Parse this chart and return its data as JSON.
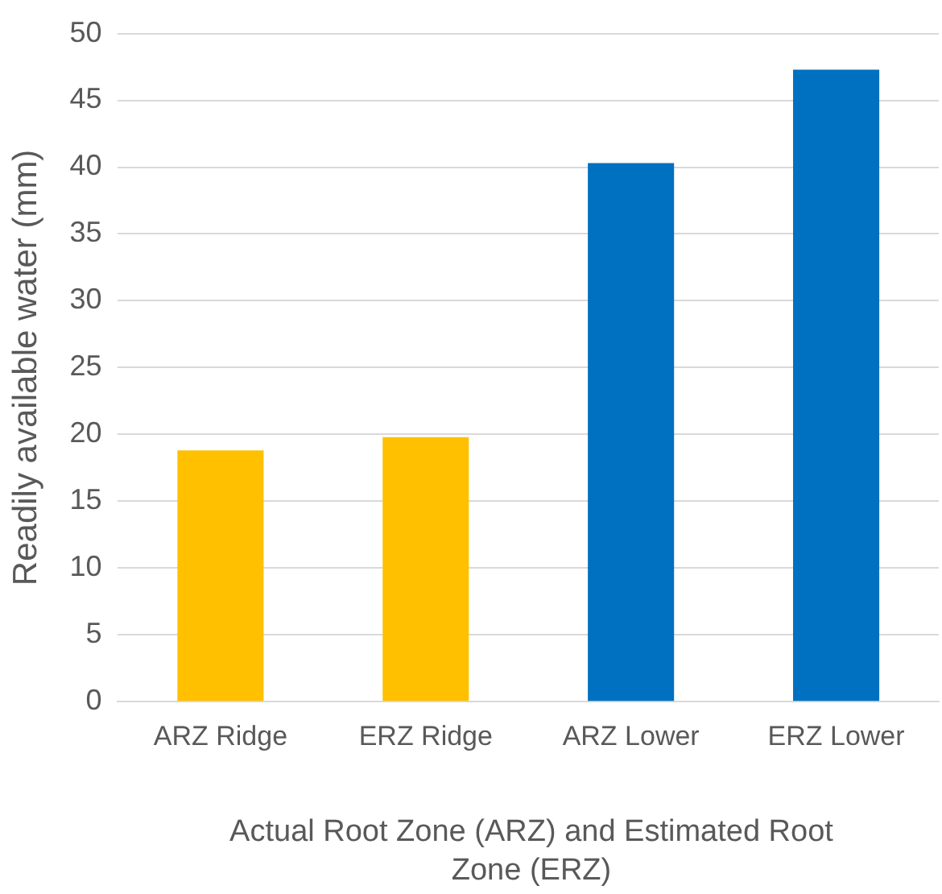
{
  "chart_data": {
    "type": "bar",
    "xlabel": "Actual Root Zone (ARZ) and Estimated Root Zone (ERZ)",
    "ylabel": "Readily available water (mm)",
    "categories": [
      "ARZ Ridge",
      "ERZ Ridge",
      "ARZ Lower",
      "ERZ Lower"
    ],
    "values": [
      18.8,
      19.8,
      40.3,
      47.3
    ],
    "colors": [
      "#ffc000",
      "#ffc000",
      "#0070c0",
      "#0070c0"
    ],
    "ylim": [
      0,
      50
    ],
    "yticks": [
      0,
      5,
      10,
      15,
      20,
      25,
      30,
      35,
      40,
      45,
      50
    ],
    "grid": "y",
    "legend": false
  }
}
